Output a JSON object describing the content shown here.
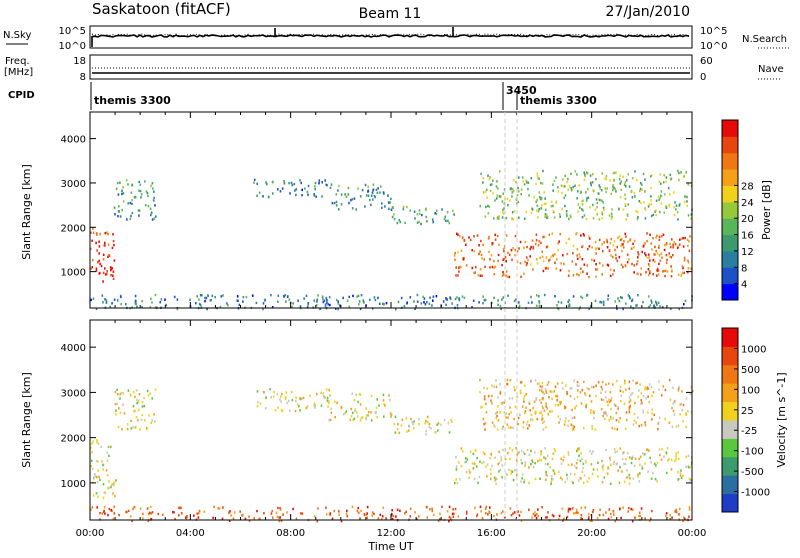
{
  "header": {
    "station": "Saskatoon (fitACF)",
    "beam": "Beam 11",
    "date": "27/Jan/2010"
  },
  "noise_panel": {
    "left_label": "N.Sky",
    "right_label": "N.Search",
    "left_ticks": [
      "10^5",
      "10^0"
    ],
    "right_ticks": [
      "10^5",
      "10^0"
    ]
  },
  "freq_panel": {
    "left_label_1": "Freq.",
    "left_label_2": "[MHz]",
    "right_label": "Nave",
    "left_ticks": [
      "18",
      "8"
    ],
    "right_ticks": [
      "60",
      "0"
    ]
  },
  "cpid": {
    "label": "CPID",
    "segments": [
      {
        "start_hour": 0.0,
        "label": "themis 3300"
      },
      {
        "start_hour": 16.5,
        "label": "3450"
      },
      {
        "start_hour": 17.0,
        "label": "themis 3300"
      }
    ]
  },
  "chart_data": [
    {
      "type": "heatmap",
      "name": "power",
      "title": "",
      "xlabel": "",
      "ylabel": "Slant Range [km]",
      "xlim": [
        0,
        24
      ],
      "ylim": [
        180,
        4600
      ],
      "y_ticks": [
        "1000",
        "2000",
        "3000",
        "4000"
      ],
      "colorbar": {
        "label": "Power [dB]",
        "ticks": [
          "4",
          "8",
          "12",
          "16",
          "20",
          "24",
          "28"
        ],
        "colors": [
          "#0000ff",
          "#1e50c8",
          "#2a7fa0",
          "#3c9a6e",
          "#5ab45a",
          "#96c83c",
          "#f0d21e",
          "#f5a019",
          "#f07814",
          "#e8460f",
          "#e60a0a"
        ]
      },
      "regions": [
        {
          "t0": 0.0,
          "t1": 1.0,
          "r0": 800,
          "r1": 2000,
          "level": 0.9
        },
        {
          "t0": 0.0,
          "t1": 0.9,
          "r0": 950,
          "r1": 1150,
          "level": 1.0
        },
        {
          "t0": 0.9,
          "t1": 2.6,
          "r0": 2200,
          "r1": 3100,
          "level": 0.3
        },
        {
          "t0": 6.5,
          "t1": 9.5,
          "r0": 2700,
          "r1": 3100,
          "level": 0.25
        },
        {
          "t0": 9.5,
          "t1": 12.0,
          "r0": 2400,
          "r1": 3000,
          "level": 0.3
        },
        {
          "t0": 12.0,
          "t1": 14.5,
          "r0": 2100,
          "r1": 2500,
          "level": 0.35
        },
        {
          "t0": 14.5,
          "t1": 24.0,
          "r0": 900,
          "r1": 1900,
          "level": 0.8
        },
        {
          "t0": 15.5,
          "t1": 24.0,
          "r0": 2200,
          "r1": 3300,
          "level": 0.45
        },
        {
          "t0": 0.0,
          "t1": 24.0,
          "r0": 180,
          "r1": 500,
          "level": 0.25
        }
      ]
    },
    {
      "type": "heatmap",
      "name": "velocity",
      "title": "",
      "xlabel": "Time UT",
      "ylabel": "Slant Range [km]",
      "xlim": [
        0,
        24
      ],
      "ylim": [
        180,
        4600
      ],
      "x_ticks": [
        "00:00",
        "04:00",
        "08:00",
        "12:00",
        "16:00",
        "20:00",
        "00:00"
      ],
      "y_ticks": [
        "1000",
        "2000",
        "3000",
        "4000"
      ],
      "colorbar": {
        "label": "Velocity [m s^-1]",
        "ticks": [
          "1000",
          "500",
          "100",
          "25",
          "-25",
          "-100",
          "-500",
          "-1000"
        ],
        "colors": [
          "#1e3cc8",
          "#2a6fa0",
          "#3c9a6e",
          "#5ac83c",
          "#c8c8c0",
          "#f0d21e",
          "#f5a019",
          "#f07814",
          "#e8460f",
          "#e60a0a"
        ]
      },
      "regions": [
        {
          "t0": 0.0,
          "t1": 1.0,
          "r0": 700,
          "r1": 2000,
          "level": 0.5
        },
        {
          "t0": 0.9,
          "t1": 2.6,
          "r0": 2200,
          "r1": 3100,
          "level": 0.5
        },
        {
          "t0": 6.5,
          "t1": 9.5,
          "r0": 2600,
          "r1": 3100,
          "level": 0.5
        },
        {
          "t0": 9.5,
          "t1": 12.0,
          "r0": 2400,
          "r1": 3000,
          "level": 0.5
        },
        {
          "t0": 12.0,
          "t1": 14.5,
          "r0": 2100,
          "r1": 2500,
          "level": 0.5
        },
        {
          "t0": 14.5,
          "t1": 24.0,
          "r0": 1000,
          "r1": 1800,
          "level": 0.5
        },
        {
          "t0": 15.5,
          "t1": 24.0,
          "r0": 2200,
          "r1": 3300,
          "level": 0.6
        },
        {
          "t0": 0.0,
          "t1": 24.0,
          "r0": 180,
          "r1": 500,
          "level": 0.8
        }
      ]
    }
  ]
}
